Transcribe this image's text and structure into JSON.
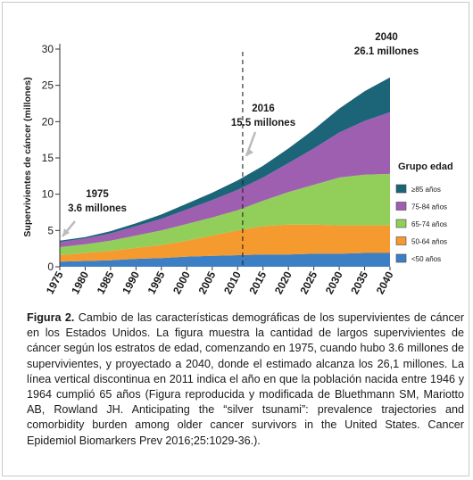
{
  "chart_data": {
    "type": "area",
    "stacked": true,
    "ylabel": "Supervivientes de cáncer (millones)",
    "ylim": [
      0,
      30
    ],
    "yticks": [
      0,
      5,
      10,
      15,
      20,
      25,
      30
    ],
    "xlim": [
      1975,
      2040
    ],
    "xticks": [
      "1975",
      "1980",
      "1985",
      "1990",
      "1995",
      "2000",
      "2005",
      "2010",
      "2015",
      "2020",
      "2025",
      "2030",
      "2035",
      "2040"
    ],
    "x": [
      1975,
      1980,
      1985,
      1990,
      1995,
      2000,
      2005,
      2010,
      2015,
      2020,
      2025,
      2030,
      2035,
      2040
    ],
    "series": [
      {
        "name": "<50 años",
        "color": "#3d7fc4",
        "values": [
          0.7,
          0.8,
          0.9,
          1.1,
          1.2,
          1.4,
          1.5,
          1.6,
          1.7,
          1.7,
          1.8,
          1.8,
          1.9,
          1.9
        ]
      },
      {
        "name": "50-64 años",
        "color": "#f49a2f",
        "values": [
          0.9,
          1.1,
          1.3,
          1.5,
          1.8,
          2.2,
          2.8,
          3.4,
          3.9,
          4.1,
          4.0,
          3.9,
          3.8,
          3.8
        ]
      },
      {
        "name": "65-74 años",
        "color": "#92cf5a",
        "values": [
          1.1,
          1.2,
          1.4,
          1.7,
          2.0,
          2.3,
          2.5,
          2.8,
          3.5,
          4.5,
          5.5,
          6.6,
          7.0,
          7.1
        ]
      },
      {
        "name": "75-84 años",
        "color": "#9e5fb0",
        "values": [
          0.7,
          0.8,
          1.0,
          1.3,
          1.6,
          2.0,
          2.4,
          2.8,
          3.2,
          4.0,
          5.0,
          6.2,
          7.4,
          8.5
        ]
      },
      {
        "name": "≥85 años",
        "color": "#1c6478",
        "values": [
          0.2,
          0.2,
          0.3,
          0.4,
          0.6,
          0.8,
          1.0,
          1.3,
          1.6,
          2.0,
          2.6,
          3.3,
          4.1,
          4.8
        ]
      }
    ],
    "legend": {
      "title": "Grupo edad",
      "placement": "right",
      "order": [
        "≥85 años",
        "75-84 años",
        "65-74 años",
        "50-64 años",
        "<50 años"
      ]
    },
    "reference_line": {
      "x": 2011,
      "style": "dashed"
    },
    "annotations": [
      {
        "year": "1975",
        "value": "3.6 millones",
        "x": 1975,
        "y": 3.6
      },
      {
        "year": "2016",
        "value": "15.5 millones",
        "x": 2016,
        "y": 15.5
      },
      {
        "year": "2040",
        "value": "26.1 millones",
        "x": 2040,
        "y": 26.1
      }
    ]
  },
  "caption": {
    "label": "Figura 2.",
    "text": "Cambio de las características demográficas de los supervivientes de cáncer en los Estados Unidos. La figura muestra la cantidad de largos supervivientes de cáncer según los estratos de edad, comenzando en 1975, cuando hubo 3.6 millones de supervivientes, y proyectado a 2040, donde el estimado alcanza los 26,1 millones. La línea vertical discontinua en 2011 indica el año en que la población nacida entre 1946 y 1964 cumplió 65 años (Figura reproducida y modificada de Bluethmann SM, Mariotto AB, Rowland JH. Anticipating the “silver tsunami”: prevalence trajectories and comorbidity burden among older cancer survivors in the United States. Cancer Epidemiol Biomarkers Prev 2016;25:1029-36.)."
  }
}
